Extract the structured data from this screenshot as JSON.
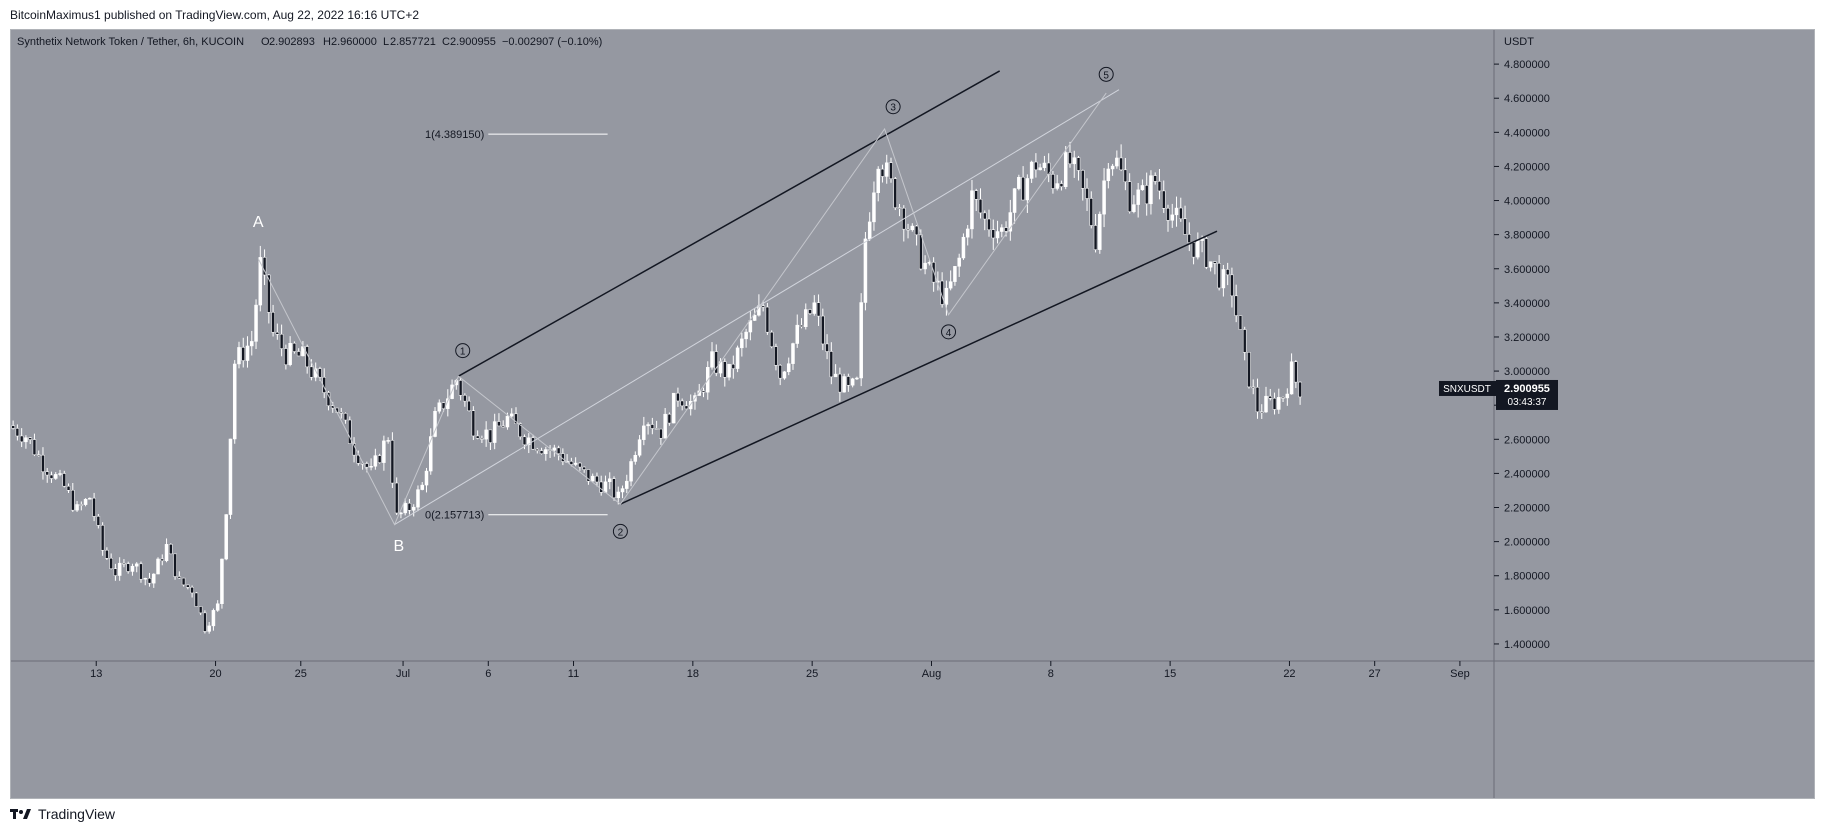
{
  "header": {
    "publisher_line": "BitcoinMaximus1 published on TradingView.com, Aug 22, 2022 16:16 UTC+2"
  },
  "footer": {
    "brand": "TradingView"
  },
  "colors": {
    "background": "#9598a1",
    "candle": "#ffffff",
    "trendline": "#131722",
    "channel_mid": "#d1d4dc",
    "wave_line": "#c4c6cc",
    "price_label_bg": "#131722"
  },
  "chart_data": {
    "type": "candlestick",
    "title": "Synthetix Network Token / Tether, 6h, KUCOIN",
    "ohlc": {
      "o_label": "O",
      "o": "2.902893",
      "h_label": "H",
      "h": "2.960000",
      "l_label": "L",
      "l": "2.857721",
      "c_label": "C",
      "c": "2.900955",
      "change": "−0.002907 (−0.10%)"
    },
    "y_axis": {
      "unit": "USDT",
      "range": [
        1.3,
        5.0
      ],
      "ticks": [
        1.4,
        1.6,
        1.8,
        2.0,
        2.2,
        2.4,
        2.6,
        2.8,
        3.0,
        3.2,
        3.4,
        3.6,
        3.8,
        4.0,
        4.2,
        4.4,
        4.6,
        4.8
      ],
      "tick_labels": [
        "1.400000",
        "1.600000",
        "1.800000",
        "2.000000",
        "2.200000",
        "2.400000",
        "2.600000",
        "2.800000",
        "3.000000",
        "3.200000",
        "3.400000",
        "3.600000",
        "3.800000",
        "4.000000",
        "4.200000",
        "4.400000",
        "4.600000",
        "4.800000"
      ]
    },
    "x_axis": {
      "start_date": "2022-06-08",
      "end_date": "2022-09-03",
      "ticks": [
        {
          "date": "2022-06-13",
          "label": "13"
        },
        {
          "date": "2022-06-20",
          "label": "20"
        },
        {
          "date": "2022-06-25",
          "label": "25"
        },
        {
          "date": "2022-07-01",
          "label": "Jul"
        },
        {
          "date": "2022-07-06",
          "label": "6"
        },
        {
          "date": "2022-07-11",
          "label": "11"
        },
        {
          "date": "2022-07-18",
          "label": "18"
        },
        {
          "date": "2022-07-25",
          "label": "25"
        },
        {
          "date": "2022-08-01",
          "label": "Aug"
        },
        {
          "date": "2022-08-08",
          "label": "8"
        },
        {
          "date": "2022-08-15",
          "label": "15"
        },
        {
          "date": "2022-08-22",
          "label": "22"
        },
        {
          "date": "2022-08-27",
          "label": "27"
        },
        {
          "date": "2022-09-01",
          "label": "Sep"
        }
      ]
    },
    "last_price": {
      "symbol": "SNXUSDT",
      "value": 2.900955,
      "value_label": "2.900955",
      "countdown": "03:43:37"
    },
    "price_path": [
      [
        "2022-06-08T00:00",
        2.68
      ],
      [
        "2022-06-09T00:00",
        2.62
      ],
      [
        "2022-06-10T00:00",
        2.46
      ],
      [
        "2022-06-11T06:00",
        2.32
      ],
      [
        "2022-06-12T00:00",
        2.18
      ],
      [
        "2022-06-12T18:00",
        2.26
      ],
      [
        "2022-06-13T12:00",
        1.95
      ],
      [
        "2022-06-14T06:00",
        1.82
      ],
      [
        "2022-06-15T06:00",
        1.88
      ],
      [
        "2022-06-16T06:00",
        1.76
      ],
      [
        "2022-06-17T06:00",
        1.97
      ],
      [
        "2022-06-18T00:00",
        1.76
      ],
      [
        "2022-06-18T18:00",
        1.72
      ],
      [
        "2022-06-19T12:00",
        1.5
      ],
      [
        "2022-06-20T06:00",
        1.62
      ],
      [
        "2022-06-20T18:00",
        2.2
      ],
      [
        "2022-06-21T06:00",
        3.05
      ],
      [
        "2022-06-22T06:00",
        3.18
      ],
      [
        "2022-06-22T18:00",
        3.62
      ],
      [
        "2022-06-23T12:00",
        3.22
      ],
      [
        "2022-06-24T06:00",
        3.1
      ],
      [
        "2022-06-25T06:00",
        3.08
      ],
      [
        "2022-06-26T06:00",
        2.92
      ],
      [
        "2022-06-27T06:00",
        2.78
      ],
      [
        "2022-06-28T06:00",
        2.55
      ],
      [
        "2022-06-29T06:00",
        2.4
      ],
      [
        "2022-06-30T06:00",
        2.62
      ],
      [
        "2022-06-30T18:00",
        2.14
      ],
      [
        "2022-07-01T12:00",
        2.2
      ],
      [
        "2022-07-02T06:00",
        2.32
      ],
      [
        "2022-07-03T00:00",
        2.72
      ],
      [
        "2022-07-04T06:00",
        2.95
      ],
      [
        "2022-07-05T06:00",
        2.68
      ],
      [
        "2022-07-06T06:00",
        2.62
      ],
      [
        "2022-07-07T06:00",
        2.72
      ],
      [
        "2022-07-08T06:00",
        2.62
      ],
      [
        "2022-07-09T06:00",
        2.56
      ],
      [
        "2022-07-10T06:00",
        2.52
      ],
      [
        "2022-07-11T06:00",
        2.43
      ],
      [
        "2022-07-12T06:00",
        2.36
      ],
      [
        "2022-07-13T06:00",
        2.32
      ],
      [
        "2022-07-13T18:00",
        2.25
      ],
      [
        "2022-07-14T12:00",
        2.46
      ],
      [
        "2022-07-15T06:00",
        2.74
      ],
      [
        "2022-07-16T06:00",
        2.65
      ],
      [
        "2022-07-17T06:00",
        2.86
      ],
      [
        "2022-07-18T06:00",
        2.8
      ],
      [
        "2022-07-19T06:00",
        3.05
      ],
      [
        "2022-07-20T06:00",
        2.98
      ],
      [
        "2022-07-21T06:00",
        3.22
      ],
      [
        "2022-07-22T06:00",
        3.38
      ],
      [
        "2022-07-23T06:00",
        2.98
      ],
      [
        "2022-07-24T06:00",
        3.22
      ],
      [
        "2022-07-25T06:00",
        3.38
      ],
      [
        "2022-07-26T06:00",
        2.98
      ],
      [
        "2022-07-27T06:00",
        2.88
      ],
      [
        "2022-07-27T18:00",
        2.92
      ],
      [
        "2022-07-28T06:00",
        3.78
      ],
      [
        "2022-07-29T00:00",
        4.28
      ],
      [
        "2022-07-29T18:00",
        4.08
      ],
      [
        "2022-07-30T12:00",
        3.92
      ],
      [
        "2022-07-31T06:00",
        3.72
      ],
      [
        "2022-08-01T06:00",
        3.52
      ],
      [
        "2022-08-02T00:00",
        3.42
      ],
      [
        "2022-08-02T18:00",
        3.65
      ],
      [
        "2022-08-03T12:00",
        4.02
      ],
      [
        "2022-08-04T06:00",
        3.88
      ],
      [
        "2022-08-05T06:00",
        3.82
      ],
      [
        "2022-08-06T06:00",
        4.05
      ],
      [
        "2022-08-07T06:00",
        4.22
      ],
      [
        "2022-08-08T06:00",
        4.12
      ],
      [
        "2022-08-09T06:00",
        4.22
      ],
      [
        "2022-08-10T06:00",
        3.98
      ],
      [
        "2022-08-10T18:00",
        3.78
      ],
      [
        "2022-08-11T12:00",
        4.28
      ],
      [
        "2022-08-12T00:00",
        4.22
      ],
      [
        "2022-08-12T18:00",
        4.02
      ],
      [
        "2022-08-13T12:00",
        4.02
      ],
      [
        "2022-08-14T06:00",
        4.12
      ],
      [
        "2022-08-15T06:00",
        3.92
      ],
      [
        "2022-08-16T06:00",
        3.76
      ],
      [
        "2022-08-17T06:00",
        3.68
      ],
      [
        "2022-08-18T06:00",
        3.52
      ],
      [
        "2022-08-18T18:00",
        3.48
      ],
      [
        "2022-08-19T12:00",
        3.05
      ],
      [
        "2022-08-20T06:00",
        2.78
      ],
      [
        "2022-08-20T18:00",
        2.8
      ],
      [
        "2022-08-21T06:00",
        2.82
      ],
      [
        "2022-08-21T18:00",
        2.86
      ],
      [
        "2022-08-22T06:00",
        3.0
      ],
      [
        "2022-08-22T16:00",
        2.9
      ]
    ],
    "drawings": {
      "channel_upper": [
        [
          "2022-07-04T06:00",
          2.97
        ],
        [
          "2022-08-05T00:00",
          4.76
        ]
      ],
      "channel_lower": [
        [
          "2022-07-13T18:00",
          2.22
        ],
        [
          "2022-08-17T18:00",
          3.82
        ]
      ],
      "channel_mid": [
        [
          "2022-06-30T12:00",
          2.1
        ],
        [
          "2022-08-12T00:00",
          4.65
        ]
      ],
      "wave_path": [
        [
          "2022-06-22T12:00",
          3.66
        ],
        [
          "2022-06-30T12:00",
          2.1
        ],
        [
          "2022-07-04T06:00",
          2.97
        ],
        [
          "2022-07-13T18:00",
          2.22
        ],
        [
          "2022-07-29T06:00",
          4.42
        ],
        [
          "2022-08-02T00:00",
          3.33
        ],
        [
          "2022-08-11T06:00",
          4.63
        ]
      ],
      "fib_levels": [
        {
          "label": "1(4.389150)",
          "value": 4.38915,
          "from": "2022-07-06T00:00",
          "to": "2022-07-13T00:00"
        },
        {
          "label": "0(2.157713)",
          "value": 2.157713,
          "from": "2022-07-06T00:00",
          "to": "2022-07-13T00:00"
        }
      ],
      "wave_labels": [
        {
          "text": "A",
          "date": "2022-06-22T12:00",
          "price": 3.88,
          "style": "letter"
        },
        {
          "text": "B",
          "date": "2022-06-30T18:00",
          "price": 1.98,
          "style": "letter"
        },
        {
          "text": "1",
          "date": "2022-07-04T12:00",
          "price": 3.12,
          "style": "circle"
        },
        {
          "text": "2",
          "date": "2022-07-13T18:00",
          "price": 2.06,
          "style": "circle"
        },
        {
          "text": "3",
          "date": "2022-07-29T18:00",
          "price": 4.55,
          "style": "circle"
        },
        {
          "text": "4",
          "date": "2022-08-02T00:00",
          "price": 3.23,
          "style": "circle"
        },
        {
          "text": "5",
          "date": "2022-08-11T06:00",
          "price": 4.74,
          "style": "circle"
        }
      ]
    }
  }
}
